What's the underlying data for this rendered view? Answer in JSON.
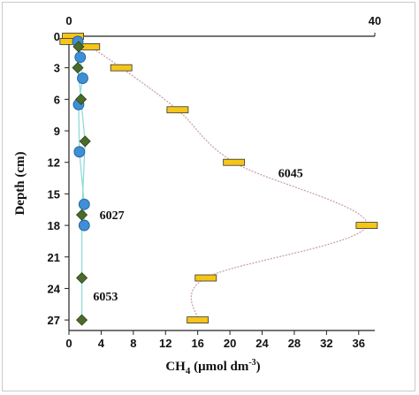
{
  "chart_data": {
    "type": "scatter",
    "title": "",
    "xlabel": "CH4 (μmol dm-3)",
    "xlabel_parts": {
      "base": "CH",
      "sub": "4",
      "mid": " (μmol dm",
      "sup": "-3",
      "end": ")"
    },
    "ylabel": "Depth (cm)",
    "xlim": [
      0,
      38
    ],
    "ylim": [
      0,
      28
    ],
    "y_reversed": true,
    "x_ticks": [
      0,
      4,
      8,
      12,
      16,
      20,
      24,
      28,
      32,
      36
    ],
    "y_ticks": [
      0,
      3,
      6,
      9,
      12,
      15,
      18,
      21,
      24,
      27
    ],
    "top_axis": {
      "ticks": [
        0,
        40
      ],
      "labels": [
        "0",
        "40"
      ]
    },
    "grid": false,
    "series": [
      {
        "name": "6045",
        "marker": "bar",
        "color": "#f5c518",
        "line_color": "#c9a3a8",
        "points": [
          {
            "x": 0.5,
            "y": 0
          },
          {
            "x": 0.2,
            "y": 0.5
          },
          {
            "x": 2.5,
            "y": 1
          },
          {
            "x": 6.5,
            "y": 3
          },
          {
            "x": 13.5,
            "y": 7
          },
          {
            "x": 20.5,
            "y": 12
          },
          {
            "x": 37.0,
            "y": 18
          },
          {
            "x": 17.0,
            "y": 23
          },
          {
            "x": 16.0,
            "y": 27
          }
        ]
      },
      {
        "name": "6027",
        "marker": "circle",
        "color": "#3d8fd6",
        "line_color": "#8fdcd6",
        "points": [
          {
            "x": 1.1,
            "y": 0.5
          },
          {
            "x": 1.4,
            "y": 2
          },
          {
            "x": 1.7,
            "y": 4
          },
          {
            "x": 1.2,
            "y": 6.5
          },
          {
            "x": 1.3,
            "y": 11
          },
          {
            "x": 1.9,
            "y": 16
          },
          {
            "x": 1.9,
            "y": 18
          }
        ]
      },
      {
        "name": "6053",
        "marker": "diamond",
        "color": "#4a6b2a",
        "line_color": "#8fdcd6",
        "points": [
          {
            "x": 1.2,
            "y": 1
          },
          {
            "x": 1.1,
            "y": 3
          },
          {
            "x": 1.5,
            "y": 6
          },
          {
            "x": 2.0,
            "y": 10
          },
          {
            "x": 1.6,
            "y": 17
          },
          {
            "x": 1.6,
            "y": 23
          },
          {
            "x": 1.6,
            "y": 27
          }
        ]
      }
    ],
    "annotations": [
      {
        "text": "6045",
        "x": 26,
        "y": 13
      },
      {
        "text": "6027",
        "x": 3.8,
        "y": 17
      },
      {
        "text": "6053",
        "x": 3.0,
        "y": 24.7
      }
    ]
  }
}
